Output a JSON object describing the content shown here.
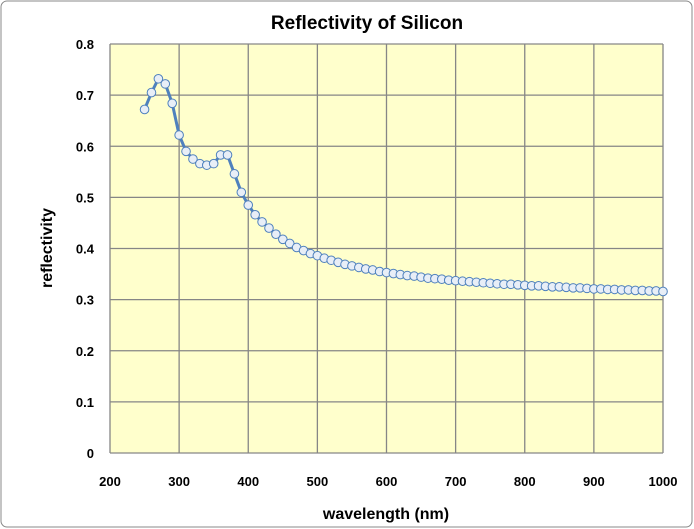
{
  "chart_data": {
    "type": "line",
    "title": "Reflectivity of Silicon",
    "xlabel": "wavelength (nm)",
    "ylabel": "reflectivity",
    "xlim": [
      200,
      1000
    ],
    "ylim": [
      0,
      0.8
    ],
    "xticks": [
      200,
      300,
      400,
      500,
      600,
      700,
      800,
      900,
      1000
    ],
    "yticks": [
      0,
      0.1,
      0.2,
      0.3,
      0.4,
      0.5,
      0.6,
      0.7,
      0.8
    ],
    "xtick_labels": [
      "200",
      "300",
      "400",
      "500",
      "600",
      "700",
      "800",
      "900",
      "1000"
    ],
    "ytick_labels": [
      "0",
      "0.1",
      "0.2",
      "0.3",
      "0.4",
      "0.5",
      "0.6",
      "0.7",
      "0.8"
    ],
    "grid": true,
    "legend": "none",
    "series_color": "#4F81BD",
    "marker_fill": "#E8EEF7",
    "plot_bg": "#FFFFCC",
    "series": [
      {
        "name": "reflectivity",
        "x": [
          250,
          260,
          270,
          280,
          290,
          300,
          310,
          320,
          330,
          340,
          350,
          360,
          370,
          380,
          390,
          400,
          410,
          420,
          430,
          440,
          450,
          460,
          470,
          480,
          490,
          500,
          510,
          520,
          530,
          540,
          550,
          560,
          570,
          580,
          590,
          600,
          610,
          620,
          630,
          640,
          650,
          660,
          670,
          680,
          690,
          700,
          710,
          720,
          730,
          740,
          750,
          760,
          770,
          780,
          790,
          800,
          810,
          820,
          830,
          840,
          850,
          860,
          870,
          880,
          890,
          900,
          910,
          920,
          930,
          940,
          950,
          960,
          970,
          980,
          990,
          1000
        ],
        "y": [
          0.672,
          0.705,
          0.732,
          0.722,
          0.684,
          0.622,
          0.59,
          0.575,
          0.566,
          0.563,
          0.566,
          0.583,
          0.583,
          0.546,
          0.51,
          0.485,
          0.466,
          0.452,
          0.44,
          0.428,
          0.418,
          0.41,
          0.402,
          0.396,
          0.39,
          0.386,
          0.381,
          0.377,
          0.373,
          0.369,
          0.366,
          0.363,
          0.36,
          0.358,
          0.355,
          0.353,
          0.351,
          0.349,
          0.347,
          0.346,
          0.344,
          0.342,
          0.341,
          0.34,
          0.338,
          0.337,
          0.336,
          0.335,
          0.334,
          0.333,
          0.332,
          0.331,
          0.33,
          0.33,
          0.329,
          0.328,
          0.327,
          0.327,
          0.326,
          0.325,
          0.325,
          0.324,
          0.323,
          0.323,
          0.322,
          0.321,
          0.321,
          0.32,
          0.32,
          0.319,
          0.319,
          0.318,
          0.318,
          0.317,
          0.317,
          0.316
        ]
      }
    ]
  }
}
